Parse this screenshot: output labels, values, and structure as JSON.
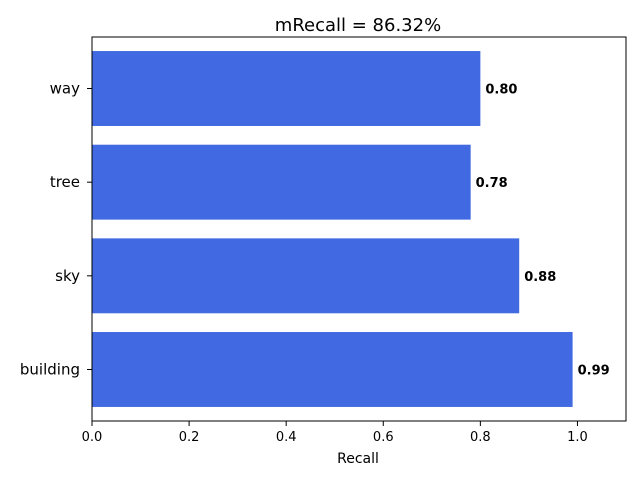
{
  "chart_data": {
    "type": "bar",
    "orientation": "horizontal",
    "title": "mRecall = 86.32%",
    "xlabel": "Recall",
    "ylabel": "",
    "categories": [
      "building",
      "sky",
      "tree",
      "way"
    ],
    "values": [
      0.99,
      0.88,
      0.78,
      0.8
    ],
    "value_labels": [
      "0.99",
      "0.88",
      "0.78",
      "0.80"
    ],
    "xlim": [
      0,
      1.1
    ],
    "xticks": [
      0.0,
      0.2,
      0.4,
      0.6,
      0.8,
      1.0
    ],
    "xtick_labels": [
      "0.0",
      "0.2",
      "0.4",
      "0.6",
      "0.8",
      "1.0"
    ],
    "grid": false,
    "legend": "none",
    "bar_color": "#4169E1",
    "label_color": "#4169E1"
  }
}
